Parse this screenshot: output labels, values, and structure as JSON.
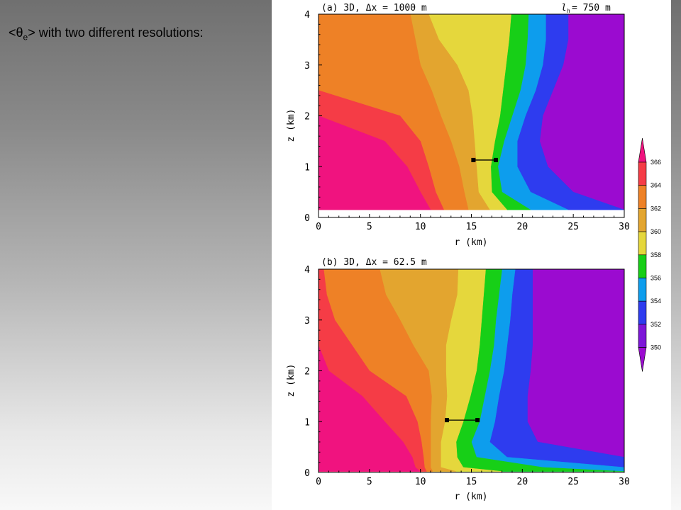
{
  "slide": {
    "title_pre": "<θ",
    "title_sub": "e",
    "title_post": "> with two different resolutions:"
  },
  "chart_data": [
    {
      "type": "filled_contour",
      "panel_label": "(a) 3D, Δx = 1000 m",
      "annotation": "l_h = 750 m",
      "annotation_text": "= 750 m",
      "xlabel": "r (km)",
      "ylabel": "z (km)",
      "xlim": [
        0,
        30
      ],
      "ylim": [
        0,
        4
      ],
      "x_ticks": [
        0,
        5,
        10,
        15,
        20,
        25,
        30
      ],
      "y_ticks": [
        0,
        1,
        2,
        3,
        4
      ],
      "marker_segment": {
        "x": [
          15.2,
          17.4
        ],
        "z": 1.13
      },
      "contour_boundaries_r_vs_z": {
        "z": [
          0.15,
          0.5,
          1.0,
          1.5,
          2.0,
          2.5,
          3.0,
          3.5,
          4.0
        ],
        "366": [
          11.0,
          10.0,
          8.7,
          6.5,
          null,
          null,
          null,
          null,
          null
        ],
        "364": [
          12.3,
          11.5,
          10.8,
          10.0,
          8.0,
          null,
          null,
          null,
          null
        ],
        "362": [
          14.7,
          14.3,
          13.8,
          13.0,
          12.0,
          11.1,
          10.0,
          9.5,
          9.0
        ],
        "360": [
          16.8,
          15.7,
          15.5,
          15.3,
          15.1,
          14.7,
          13.6,
          11.8,
          10.8
        ],
        "358": [
          18.5,
          17.0,
          16.9,
          17.3,
          17.8,
          18.1,
          18.4,
          18.7,
          18.9
        ],
        "356": [
          20.8,
          18.0,
          17.6,
          18.2,
          19.0,
          19.8,
          20.3,
          20.5,
          20.6
        ],
        "354": [
          24.5,
          20.8,
          19.5,
          19.5,
          20.3,
          21.3,
          22.0,
          22.3,
          22.3
        ],
        "352": [
          30.0,
          25.0,
          22.5,
          21.7,
          22.0,
          23.0,
          24.0,
          24.5,
          24.5
        ]
      }
    },
    {
      "type": "filled_contour",
      "panel_label": "(b) 3D, Δx = 62.5 m",
      "xlabel": "r (km)",
      "ylabel": "z (km)",
      "xlim": [
        0,
        30
      ],
      "ylim": [
        0,
        4
      ],
      "x_ticks": [
        0,
        5,
        10,
        15,
        20,
        25,
        30
      ],
      "y_ticks": [
        0,
        1,
        2,
        3,
        4
      ],
      "marker_segment": {
        "x": [
          12.6,
          15.6
        ],
        "z": 1.03
      },
      "contour_boundaries_r_vs_z": {
        "z": [
          0.02,
          0.1,
          0.3,
          0.6,
          1.0,
          1.5,
          2.0,
          2.5,
          3.0,
          3.5,
          4.0
        ],
        "366": [
          10.0,
          9.5,
          9.2,
          8.3,
          6.5,
          4.3,
          1.0,
          null,
          null,
          null,
          null
        ],
        "364": [
          10.6,
          10.4,
          10.3,
          10.1,
          9.7,
          8.6,
          5.0,
          3.3,
          1.6,
          0.8,
          0.5
        ],
        "362": [
          11.2,
          11.0,
          11.0,
          11.0,
          11.0,
          11.1,
          10.8,
          9.3,
          8.0,
          6.6,
          6.0
        ],
        "360": [
          13.5,
          12.0,
          12.0,
          12.0,
          12.4,
          12.6,
          12.5,
          12.5,
          13.0,
          13.6,
          13.7
        ],
        "358": [
          18.0,
          14.2,
          13.6,
          13.5,
          14.2,
          14.9,
          15.5,
          15.8,
          16.0,
          16.2,
          16.4
        ],
        "356": [
          30.0,
          22.0,
          15.5,
          15.0,
          15.8,
          16.3,
          16.8,
          17.2,
          17.4,
          17.7,
          18.0
        ],
        "354": [
          30.0,
          30.0,
          18.5,
          16.8,
          17.3,
          17.7,
          18.2,
          18.5,
          18.8,
          19.0,
          19.3
        ],
        "352": [
          30.0,
          30.0,
          30.0,
          21.5,
          20.5,
          20.5,
          20.8,
          21.0,
          21.0,
          21.0,
          21.0
        ]
      }
    }
  ],
  "colorbar": {
    "levels": [
      366,
      364,
      362,
      360,
      358,
      356,
      354,
      352,
      350
    ],
    "labels": [
      "366",
      "364",
      "362",
      "360",
      "358",
      "356",
      "354",
      "352",
      "350"
    ],
    "colors": {
      "above_366": "#f0137f",
      "364_366": "#f53c46",
      "362_364": "#ee8126",
      "360_362": "#e3a52f",
      "358_360": "#e5d73c",
      "356_358": "#17cf17",
      "354_356": "#0d9ded",
      "352_354": "#2e3cef",
      "350_352": "#7d16d8",
      "below_350": "#9b0bd0"
    }
  }
}
